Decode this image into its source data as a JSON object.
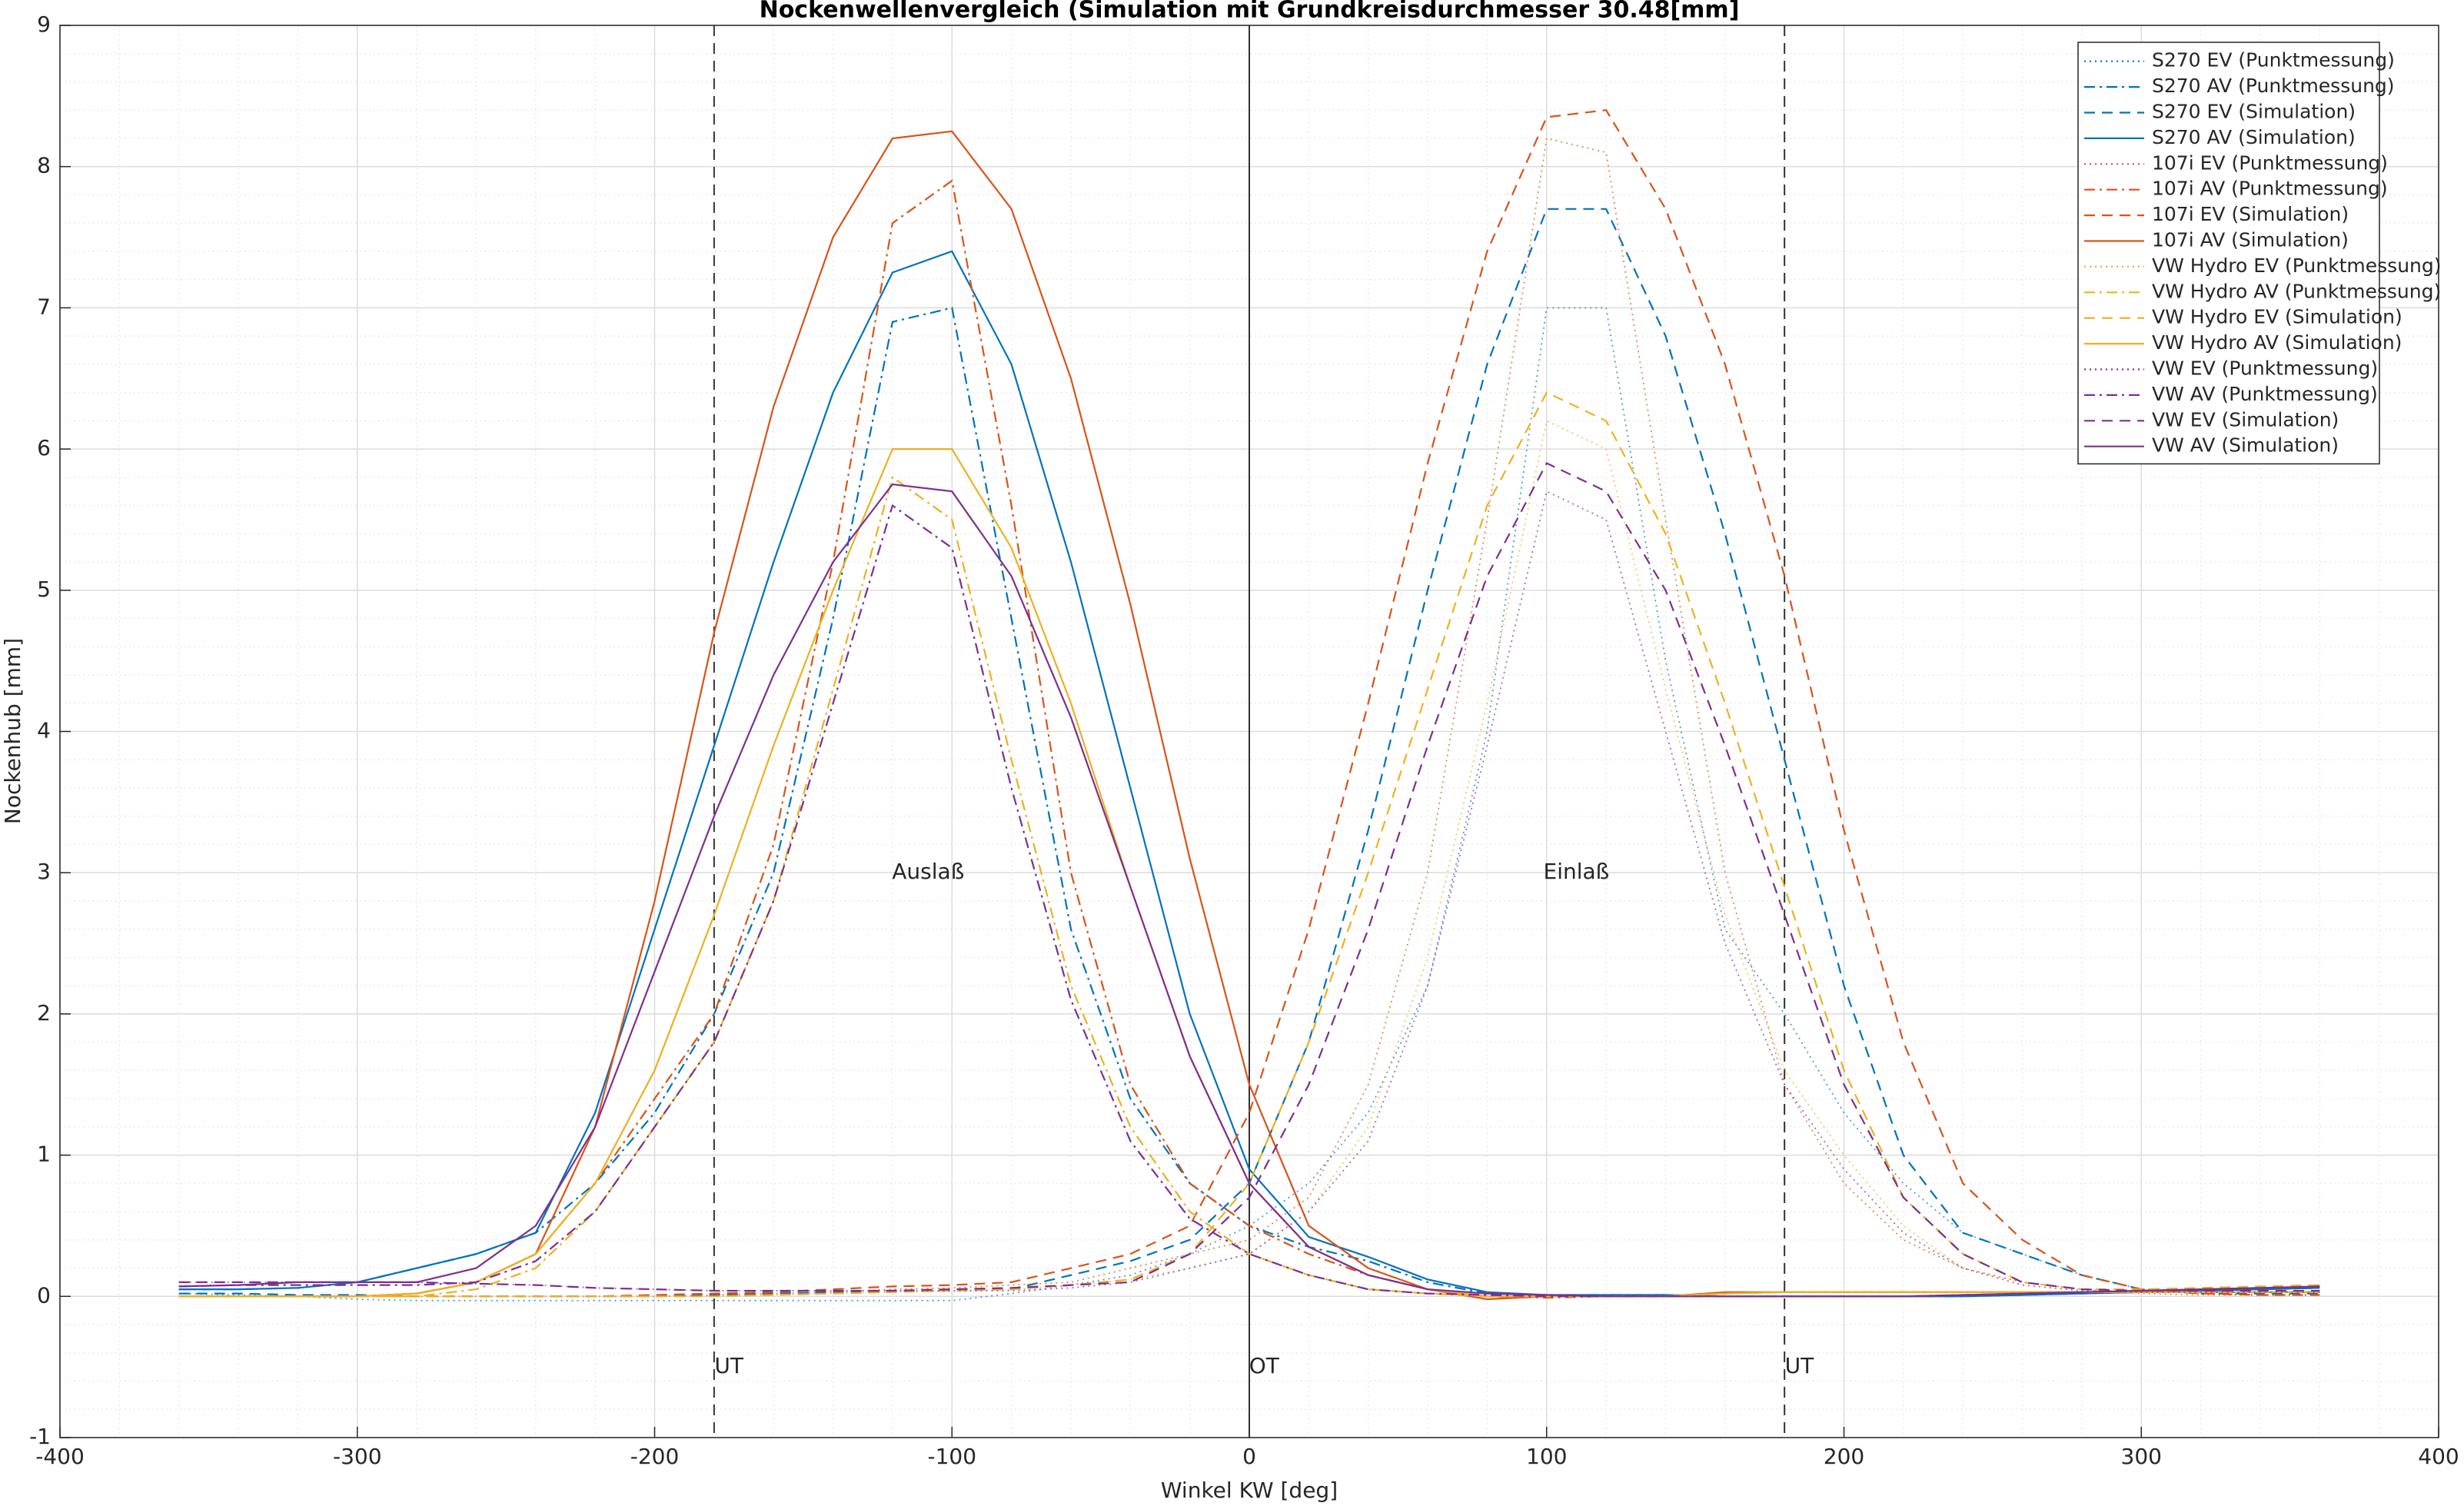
{
  "chart_data": {
    "type": "line",
    "title": "Nockenwellenvergleich (Simulation mit Grundkreisdurchmesser 30.48[mm]",
    "xlabel": "Winkel KW [deg]",
    "ylabel": "Nockenhub [mm]",
    "xlim": [
      -400,
      400
    ],
    "xticks": [
      -400,
      -300,
      -200,
      -100,
      0,
      100,
      200,
      300,
      400
    ],
    "ylim": [
      -1,
      9
    ],
    "yticks": [
      -1,
      0,
      1,
      2,
      3,
      4,
      5,
      6,
      7,
      8,
      9
    ],
    "grid": true,
    "minor_grid": true,
    "legend": "northeast",
    "vlines": [
      {
        "x": -180,
        "style": "dashed"
      },
      {
        "x": 0,
        "style": "solid"
      },
      {
        "x": 180,
        "style": "dashed"
      }
    ],
    "annotations": [
      {
        "text": "Auslaß",
        "x": -108,
        "y": 3
      },
      {
        "text": "Einlaß",
        "x": 110,
        "y": 3
      },
      {
        "text": "UT",
        "x": -175,
        "y": -0.5
      },
      {
        "text": "OT",
        "x": 5,
        "y": -0.5
      },
      {
        "text": "UT",
        "x": 185,
        "y": -0.5
      }
    ],
    "x": [
      -360,
      -340,
      -320,
      -300,
      -280,
      -260,
      -240,
      -220,
      -200,
      -180,
      -160,
      -140,
      -120,
      -100,
      -80,
      -60,
      -40,
      -20,
      0,
      20,
      40,
      60,
      80,
      100,
      120,
      140,
      160,
      180,
      200,
      220,
      240,
      260,
      280,
      300,
      320,
      340,
      360
    ],
    "series": [
      {
        "name": "S270 EV (Punktmessung)",
        "color": "#0072BD",
        "style": "dotted",
        "values": [
          0.02,
          0.01,
          0,
          -0.02,
          -0.03,
          -0.03,
          -0.03,
          -0.03,
          -0.03,
          -0.03,
          -0.03,
          -0.03,
          -0.03,
          -0.03,
          0.02,
          0.08,
          0.15,
          0.3,
          0.5,
          0.8,
          1.3,
          2.2,
          4.0,
          7.0,
          7.0,
          4.5,
          2.6,
          2.0,
          1.3,
          0.8,
          0.45,
          0.3,
          0.15,
          0.05,
          0.02,
          0.01,
          0.01
        ]
      },
      {
        "name": "S270 AV (Punktmessung)",
        "color": "#0072BD",
        "style": "dashdot",
        "values": [
          0.05,
          0.05,
          0.06,
          0.1,
          0.2,
          0.3,
          0.45,
          0.8,
          1.3,
          2.0,
          3.0,
          4.8,
          6.9,
          7.0,
          4.8,
          2.6,
          1.4,
          0.8,
          0.5,
          0.35,
          0.25,
          0.1,
          0.02,
          0.01,
          0.01,
          0.01,
          0,
          0,
          0,
          0,
          0,
          0.01,
          0.02,
          0.03,
          0.04,
          0.05,
          0.06
        ]
      },
      {
        "name": "S270 EV (Simulation)",
        "color": "#0072BD",
        "style": "dashed",
        "values": [
          0.02,
          0.02,
          0.01,
          0.01,
          0,
          0,
          0,
          0,
          0,
          0.01,
          0.02,
          0.03,
          0.04,
          0.05,
          0.05,
          0.15,
          0.25,
          0.4,
          0.8,
          1.8,
          3.3,
          5.0,
          6.6,
          7.7,
          7.7,
          6.8,
          5.4,
          3.8,
          2.2,
          1.0,
          0.45,
          0.3,
          0.15,
          0.05,
          0.02,
          0.02,
          0.02
        ]
      },
      {
        "name": "S270 AV (Simulation)",
        "color": "#0072BD",
        "style": "solid",
        "values": [
          0.05,
          0.05,
          0.06,
          0.1,
          0.2,
          0.3,
          0.45,
          1.3,
          2.6,
          3.9,
          5.2,
          6.4,
          7.25,
          7.4,
          6.6,
          5.2,
          3.6,
          2.0,
          0.9,
          0.42,
          0.28,
          0.12,
          0.03,
          0.01,
          0.01,
          0.01,
          0,
          0,
          0,
          0,
          0,
          0.01,
          0.02,
          0.03,
          0.04,
          0.05,
          0.06
        ]
      },
      {
        "name": "107i EV (Punktmessung)",
        "color": "#D95319",
        "style": "dotted",
        "values": [
          0,
          0,
          0,
          0,
          0,
          0,
          0,
          0,
          0,
          0.01,
          0.02,
          0.03,
          0.05,
          0.06,
          0.08,
          0.1,
          0.2,
          0.3,
          0.4,
          0.7,
          1.5,
          3.0,
          5.5,
          8.2,
          8.1,
          5.5,
          3.0,
          1.5,
          0.8,
          0.4,
          0.2,
          0.1,
          0.05,
          0.02,
          0.01,
          0.01,
          0.01
        ]
      },
      {
        "name": "107i AV (Punktmessung)",
        "color": "#D95319",
        "style": "dashdot",
        "values": [
          0,
          0,
          0,
          0,
          0.02,
          0.1,
          0.3,
          0.8,
          1.4,
          2.0,
          3.2,
          5.2,
          7.6,
          7.9,
          5.6,
          3.0,
          1.5,
          0.8,
          0.5,
          0.3,
          0.15,
          0.05,
          0,
          -0.01,
          0,
          0,
          0.02,
          0.03,
          0.03,
          0.03,
          0.03,
          0.03,
          0.03,
          0.03,
          0.03,
          0.03,
          0.03
        ]
      },
      {
        "name": "107i EV (Simulation)",
        "color": "#D95319",
        "style": "dashed",
        "values": [
          0,
          0,
          0,
          0,
          0,
          0,
          0,
          0,
          0.01,
          0.02,
          0.03,
          0.05,
          0.07,
          0.08,
          0.1,
          0.2,
          0.3,
          0.5,
          1.3,
          2.6,
          4.2,
          5.9,
          7.4,
          8.35,
          8.4,
          7.7,
          6.6,
          5.1,
          3.3,
          1.8,
          0.8,
          0.4,
          0.15,
          0.05,
          0.02,
          0.01,
          0.01
        ]
      },
      {
        "name": "107i AV (Simulation)",
        "color": "#D95319",
        "style": "solid",
        "values": [
          0,
          0,
          0,
          0,
          0.02,
          0.1,
          0.3,
          1.2,
          2.8,
          4.7,
          6.3,
          7.5,
          8.2,
          8.25,
          7.7,
          6.5,
          4.9,
          3.1,
          1.5,
          0.5,
          0.2,
          0.05,
          -0.02,
          0,
          0,
          0,
          0.03,
          0.03,
          0.03,
          0.03,
          0.03,
          0.03,
          0.03,
          0.03,
          0.03,
          0.03,
          0.03
        ]
      },
      {
        "name": "VW Hydro EV (Punktmessung)",
        "color": "#EDB120",
        "style": "dotted",
        "values": [
          0,
          0,
          0,
          0,
          0,
          0,
          0,
          0,
          0,
          0,
          0.01,
          0.02,
          0.03,
          0.04,
          0.05,
          0.08,
          0.12,
          0.2,
          0.3,
          0.6,
          1.2,
          2.4,
          4.2,
          6.2,
          6.0,
          4.3,
          2.7,
          1.6,
          1.0,
          0.5,
          0.2,
          0.1,
          0.05,
          0.03,
          0.03,
          0.03,
          0.03
        ]
      },
      {
        "name": "VW Hydro AV (Punktmessung)",
        "color": "#EDB120",
        "style": "dashdot",
        "values": [
          0,
          0,
          0,
          0,
          0,
          0.05,
          0.2,
          0.6,
          1.2,
          1.8,
          2.8,
          4.3,
          5.8,
          5.5,
          3.8,
          2.2,
          1.2,
          0.6,
          0.3,
          0.15,
          0.05,
          0.02,
          0,
          0,
          0,
          0,
          0.02,
          0.03,
          0.03,
          0.03,
          0.03,
          0.03,
          0.03,
          0.03,
          0.03,
          0.03,
          0.03
        ]
      },
      {
        "name": "VW Hydro EV (Simulation)",
        "color": "#EDB120",
        "style": "dashed",
        "values": [
          0,
          0,
          0,
          0,
          0,
          0,
          0,
          0,
          0,
          0,
          0.01,
          0.02,
          0.03,
          0.04,
          0.05,
          0.08,
          0.12,
          0.3,
          0.8,
          1.8,
          3.0,
          4.3,
          5.6,
          6.4,
          6.2,
          5.4,
          4.2,
          2.9,
          1.6,
          0.7,
          0.3,
          0.1,
          0.05,
          0.05,
          0.06,
          0.07,
          0.08
        ]
      },
      {
        "name": "VW Hydro AV (Simulation)",
        "color": "#EDB120",
        "style": "solid",
        "values": [
          0,
          0,
          0,
          0,
          0.02,
          0.1,
          0.3,
          0.8,
          1.6,
          2.7,
          3.9,
          5.0,
          6.0,
          6.0,
          5.3,
          4.2,
          2.9,
          1.7,
          0.8,
          0.35,
          0.15,
          0.05,
          0,
          0,
          0,
          0,
          0.02,
          0.03,
          0.03,
          0.03,
          0.03,
          0.03,
          0.03,
          0.03,
          0.03,
          0.03,
          0.03
        ]
      },
      {
        "name": "VW EV (Punktmessung)",
        "color": "#7E2F8E",
        "style": "dotted",
        "values": [
          0.1,
          0.1,
          0.1,
          0.1,
          0.1,
          0.09,
          0.08,
          0.06,
          0.05,
          0.04,
          0.04,
          0.04,
          0.04,
          0.04,
          0.04,
          0.06,
          0.1,
          0.2,
          0.3,
          0.6,
          1.1,
          2.2,
          3.9,
          5.7,
          5.5,
          4.0,
          2.5,
          1.5,
          0.9,
          0.45,
          0.2,
          0.08,
          0.04,
          0.03,
          0.03,
          0.03,
          0.03
        ]
      },
      {
        "name": "VW AV (Punktmessung)",
        "color": "#7E2F8E",
        "style": "dashdot",
        "values": [
          0.07,
          0.08,
          0.08,
          0.08,
          0.08,
          0.1,
          0.25,
          0.6,
          1.2,
          1.8,
          2.8,
          4.2,
          5.6,
          5.3,
          3.6,
          2.1,
          1.1,
          0.55,
          0.3,
          0.15,
          0.05,
          0.02,
          0.01,
          0,
          0,
          0,
          0,
          0,
          0,
          0,
          0.01,
          0.02,
          0.03,
          0.04,
          0.05,
          0.06,
          0.07
        ]
      },
      {
        "name": "VW EV (Simulation)",
        "color": "#7E2F8E",
        "style": "dashed",
        "values": [
          0.1,
          0.1,
          0.1,
          0.1,
          0.1,
          0.09,
          0.08,
          0.06,
          0.05,
          0.04,
          0.04,
          0.04,
          0.04,
          0.05,
          0.06,
          0.08,
          0.1,
          0.3,
          0.7,
          1.5,
          2.6,
          3.9,
          5.1,
          5.9,
          5.7,
          5.0,
          3.9,
          2.7,
          1.5,
          0.7,
          0.3,
          0.1,
          0.05,
          0.04,
          0.04,
          0.04,
          0.04
        ]
      },
      {
        "name": "VW AV (Simulation)",
        "color": "#7E2F8E",
        "style": "solid",
        "values": [
          0.07,
          0.08,
          0.1,
          0.1,
          0.1,
          0.2,
          0.5,
          1.2,
          2.3,
          3.4,
          4.4,
          5.2,
          5.75,
          5.7,
          5.1,
          4.1,
          2.9,
          1.7,
          0.8,
          0.35,
          0.15,
          0.05,
          0.02,
          0.01,
          0,
          0,
          0,
          0,
          0,
          0,
          0.01,
          0.02,
          0.03,
          0.04,
          0.05,
          0.06,
          0.07
        ]
      }
    ]
  }
}
